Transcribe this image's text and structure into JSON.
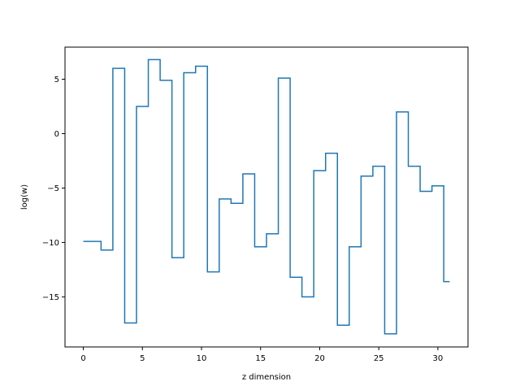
{
  "chart_data": {
    "type": "line",
    "drawstyle": "steps-mid",
    "title": "",
    "xlabel": "z dimension",
    "ylabel": "log(w)",
    "xlim": [
      -1.55,
      32.55
    ],
    "ylim": [
      -19.6,
      7.95
    ],
    "xticks": [
      0,
      5,
      10,
      15,
      20,
      25,
      30
    ],
    "yticks": [
      -15,
      -10,
      -5,
      0,
      5
    ],
    "ytick_labels": [
      "−15",
      "−10",
      "−5",
      "0",
      "5"
    ],
    "grid": false,
    "series_color": "#1f77b4",
    "x": [
      0,
      1,
      2,
      3,
      4,
      5,
      6,
      7,
      8,
      9,
      10,
      11,
      12,
      13,
      14,
      15,
      16,
      17,
      18,
      19,
      20,
      21,
      22,
      23,
      24,
      25,
      26,
      27,
      28,
      29,
      30,
      31
    ],
    "values": [
      -9.9,
      -9.9,
      -10.7,
      6.0,
      -17.4,
      2.5,
      6.8,
      4.9,
      -11.4,
      5.6,
      6.2,
      -12.7,
      -6.0,
      -6.4,
      -3.7,
      -10.4,
      -9.2,
      5.1,
      -13.2,
      -15.0,
      -3.4,
      -1.8,
      -17.6,
      -10.4,
      -3.9,
      -3.0,
      -18.4,
      2.0,
      -3.0,
      -5.3,
      -4.8,
      -13.6
    ]
  }
}
